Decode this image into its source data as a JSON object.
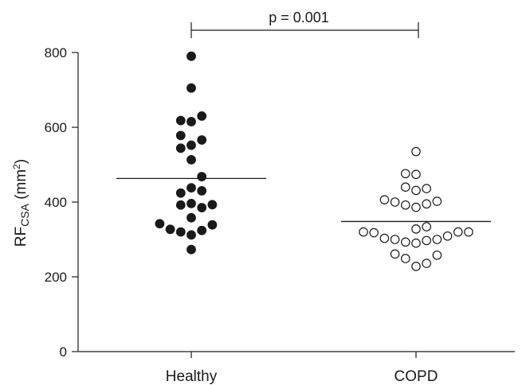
{
  "chart_data": {
    "type": "scatter",
    "ylabel": {
      "main": "RF",
      "subscript": "CSA",
      "rest": " (mm",
      "superscript": "2",
      "end": ")"
    },
    "ylim": [
      0,
      800
    ],
    "yticks": [
      "0",
      "200",
      "400",
      "600",
      "800"
    ],
    "categories": [
      "Healthy",
      "COPD"
    ],
    "annotation": "p = 0.001",
    "colors": {
      "axis": "#1a1a1a",
      "healthy_marker": "#1a1a1a",
      "copd_marker": "#ffffff"
    },
    "series": [
      {
        "category": "Healthy",
        "marker": "filled-circle",
        "mean": 463,
        "points": [
          {
            "offset": 0,
            "y": 790
          },
          {
            "offset": 0,
            "y": 705
          },
          {
            "offset": -0.2,
            "y": 618
          },
          {
            "offset": 0,
            "y": 615
          },
          {
            "offset": 0.2,
            "y": 630
          },
          {
            "offset": -0.2,
            "y": 578
          },
          {
            "offset": 0.2,
            "y": 566
          },
          {
            "offset": -0.2,
            "y": 544
          },
          {
            "offset": 0,
            "y": 552
          },
          {
            "offset": 0,
            "y": 513
          },
          {
            "offset": 0.2,
            "y": 468
          },
          {
            "offset": 0,
            "y": 438
          },
          {
            "offset": -0.2,
            "y": 424
          },
          {
            "offset": 0.2,
            "y": 430
          },
          {
            "offset": -0.2,
            "y": 392
          },
          {
            "offset": 0,
            "y": 396
          },
          {
            "offset": 0.2,
            "y": 385
          },
          {
            "offset": 0.4,
            "y": 393
          },
          {
            "offset": 0,
            "y": 358
          },
          {
            "offset": -0.6,
            "y": 342
          },
          {
            "offset": -0.4,
            "y": 327
          },
          {
            "offset": -0.2,
            "y": 320
          },
          {
            "offset": 0,
            "y": 312
          },
          {
            "offset": 0.2,
            "y": 324
          },
          {
            "offset": 0.4,
            "y": 339
          },
          {
            "offset": 0,
            "y": 273
          }
        ]
      },
      {
        "category": "COPD",
        "marker": "open-circle",
        "mean": 348,
        "points": [
          {
            "offset": 0,
            "y": 535
          },
          {
            "offset": -0.2,
            "y": 476
          },
          {
            "offset": 0,
            "y": 474
          },
          {
            "offset": -0.2,
            "y": 440
          },
          {
            "offset": 0,
            "y": 431
          },
          {
            "offset": 0.2,
            "y": 436
          },
          {
            "offset": -0.6,
            "y": 406
          },
          {
            "offset": -0.4,
            "y": 400
          },
          {
            "offset": -0.2,
            "y": 392
          },
          {
            "offset": 0,
            "y": 386
          },
          {
            "offset": 0.2,
            "y": 395
          },
          {
            "offset": 0.4,
            "y": 402
          },
          {
            "offset": 0,
            "y": 328
          },
          {
            "offset": 0.2,
            "y": 334
          },
          {
            "offset": -1.0,
            "y": 320
          },
          {
            "offset": -0.8,
            "y": 318
          },
          {
            "offset": -0.6,
            "y": 303
          },
          {
            "offset": -0.4,
            "y": 300
          },
          {
            "offset": -0.2,
            "y": 293
          },
          {
            "offset": 0,
            "y": 290
          },
          {
            "offset": 0.2,
            "y": 297
          },
          {
            "offset": 0.4,
            "y": 300
          },
          {
            "offset": 0.6,
            "y": 309
          },
          {
            "offset": 0.8,
            "y": 320
          },
          {
            "offset": 1.0,
            "y": 320
          },
          {
            "offset": -0.4,
            "y": 261
          },
          {
            "offset": -0.2,
            "y": 249
          },
          {
            "offset": 0,
            "y": 228
          },
          {
            "offset": 0.2,
            "y": 236
          },
          {
            "offset": 0.4,
            "y": 258
          }
        ]
      }
    ]
  }
}
